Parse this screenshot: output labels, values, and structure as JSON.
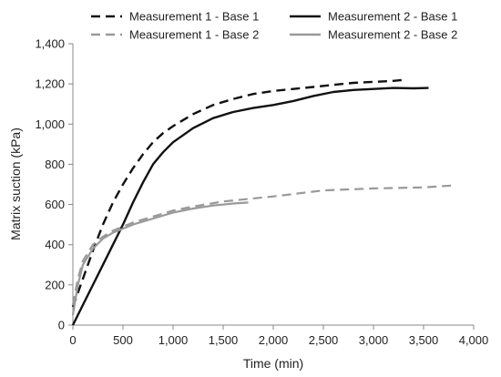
{
  "chart_data": {
    "type": "line",
    "title": "",
    "xlabel": "Time (min)",
    "ylabel": "Matrix suction (kPa)",
    "xlim": [
      0,
      4000
    ],
    "ylim": [
      0,
      1400
    ],
    "x_ticks": [
      "0",
      "500",
      "1,000",
      "1,500",
      "2,000",
      "2,500",
      "3,000",
      "3,500",
      "4,000"
    ],
    "y_ticks": [
      "0",
      "200",
      "400",
      "600",
      "800",
      "1,000",
      "1,200",
      "1,400"
    ],
    "grid": false,
    "legend_position": "top",
    "series": [
      {
        "name": "Measurement 1 - Base 1",
        "color": "#111111",
        "style": "dashed",
        "x": [
          0,
          100,
          200,
          300,
          400,
          500,
          600,
          700,
          800,
          900,
          1000,
          1200,
          1400,
          1600,
          1800,
          2000,
          2200,
          2400,
          2600,
          2800,
          3000,
          3200,
          3300
        ],
        "y": [
          90,
          230,
          370,
          500,
          610,
          700,
          780,
          850,
          910,
          955,
          990,
          1050,
          1095,
          1125,
          1150,
          1165,
          1175,
          1185,
          1195,
          1205,
          1210,
          1215,
          1220
        ]
      },
      {
        "name": "Measurement 2 - Base 1",
        "color": "#111111",
        "style": "solid",
        "x": [
          0,
          100,
          200,
          300,
          400,
          500,
          600,
          700,
          800,
          900,
          1000,
          1200,
          1400,
          1600,
          1800,
          2000,
          2200,
          2400,
          2600,
          2800,
          3000,
          3200,
          3400,
          3550
        ],
        "y": [
          0,
          100,
          200,
          300,
          400,
          500,
          610,
          710,
          800,
          860,
          910,
          980,
          1030,
          1060,
          1080,
          1095,
          1115,
          1140,
          1160,
          1170,
          1175,
          1180,
          1178,
          1180
        ]
      },
      {
        "name": "Measurement 1 - Base 2",
        "color": "#999999",
        "style": "dashed",
        "x": [
          0,
          50,
          100,
          200,
          300,
          400,
          500,
          600,
          800,
          1000,
          1200,
          1500,
          2000,
          2500,
          3000,
          3500,
          3800
        ],
        "y": [
          100,
          230,
          320,
          400,
          440,
          470,
          490,
          510,
          540,
          570,
          590,
          615,
          640,
          670,
          680,
          685,
          695
        ]
      },
      {
        "name": "Measurement 2 - Base 2",
        "color": "#999999",
        "style": "solid",
        "x": [
          0,
          50,
          100,
          200,
          300,
          400,
          500,
          600,
          800,
          1000,
          1200,
          1400,
          1600,
          1750
        ],
        "y": [
          50,
          200,
          300,
          380,
          430,
          460,
          480,
          500,
          530,
          560,
          580,
          595,
          605,
          610
        ]
      }
    ]
  }
}
